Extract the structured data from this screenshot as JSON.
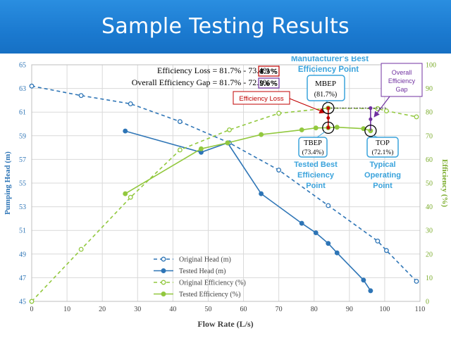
{
  "header": {
    "title": "Sample Testing Results"
  },
  "chart_data": {
    "type": "line",
    "xlabel": "Flow Rate (L/s)",
    "ylabel_left": "Pumping Head (m)",
    "ylabel_right": "Efficiency (%)",
    "xlim": [
      0,
      110
    ],
    "ylim_left": [
      45,
      65
    ],
    "ylim_right": [
      0,
      100
    ],
    "x_ticks": [
      "0",
      "10",
      "20",
      "30",
      "40",
      "50",
      "60",
      "70",
      "80",
      "90",
      "100",
      "110"
    ],
    "y_left_ticks": [
      "45",
      "47",
      "49",
      "51",
      "53",
      "55",
      "57",
      "59",
      "61",
      "63",
      "65"
    ],
    "y_right_ticks": [
      "0",
      "10",
      "20",
      "30",
      "40",
      "50",
      "60",
      "70",
      "80",
      "90",
      "100"
    ],
    "grid": true,
    "legend_position": "bottom-center",
    "colors": {
      "head": "#2e75b6",
      "efficiency": "#92c83e",
      "gridline": "#d9d9d9",
      "loss": "#c00000",
      "gap": "#7030a0",
      "callout": "#3aa3dc"
    },
    "series": [
      {
        "name": "Original Head (m)",
        "axis": "left",
        "style": "dashed",
        "color": "#2e75b6",
        "x": [
          0,
          14,
          28,
          42,
          56,
          70,
          84,
          98,
          100.5,
          109
        ],
        "y": [
          63.2,
          62.4,
          61.7,
          60.2,
          58.4,
          56.1,
          53.1,
          50.1,
          49.3,
          46.7
        ]
      },
      {
        "name": "Tested Head (m)",
        "axis": "left",
        "style": "solid",
        "color": "#2e75b6",
        "x": [
          26.5,
          48,
          55.5,
          65,
          76.5,
          80.5,
          84,
          86.5,
          94,
          96
        ],
        "y": [
          59.4,
          57.6,
          58.4,
          54.1,
          51.6,
          50.8,
          49.9,
          49.1,
          46.8,
          45.9
        ]
      },
      {
        "name": "Original Efficiency (%)",
        "axis": "right",
        "style": "dashed",
        "color": "#92c83e",
        "x": [
          0,
          14,
          28,
          42,
          56,
          70,
          84,
          98,
          100.5,
          109
        ],
        "y": [
          0,
          22,
          44,
          64,
          72.5,
          79.5,
          81.7,
          81.5,
          80.5,
          78
        ]
      },
      {
        "name": "Tested Efficiency (%)",
        "axis": "right",
        "style": "solid",
        "color": "#92c83e",
        "x": [
          26.5,
          48,
          55.5,
          65,
          76.5,
          80.5,
          84,
          86.5,
          94,
          96
        ],
        "y": [
          45.5,
          64.5,
          67,
          70.5,
          72.5,
          73.3,
          73.4,
          73.6,
          73,
          72.1
        ]
      }
    ],
    "points": {
      "mbep": {
        "x": 84,
        "y": 81.7
      },
      "tbep": {
        "x": 84,
        "y": 73.4
      },
      "top": {
        "x": 96,
        "y": 72.1
      },
      "gap_top": {
        "x": 96,
        "y": 81.7
      },
      "gap_mid": {
        "x": 96,
        "y": 77
      }
    },
    "annotations": {
      "efficiency_loss_line": "Efficiency Loss = 81.7% - 73.4% = ",
      "efficiency_loss_value": "8.3%",
      "overall_gap_line": "Overall Efficiency Gap = 81.7% - 72.1% = ",
      "overall_gap_value": "9.6%",
      "manufacturer_title_1": "Manufacturer's Best",
      "manufacturer_title_2": "Efficiency Point",
      "mbep_label": "MBEP",
      "mbep_value": "(81.7%)",
      "efficiency_loss_box": "Efficiency Loss",
      "tbep_label": "TBEP",
      "tbep_value": "(73.4%)",
      "tested_best_1": "Tested Best",
      "tested_best_2": "Efficiency",
      "tested_best_3": "Point",
      "top_label": "TOP",
      "top_value": "(72.1%)",
      "typical_1": "Typical",
      "typical_2": "Operating",
      "typical_3": "Point",
      "overall_box_1": "Overall",
      "overall_box_2": "Efficiency",
      "overall_box_3": "Gap"
    }
  }
}
